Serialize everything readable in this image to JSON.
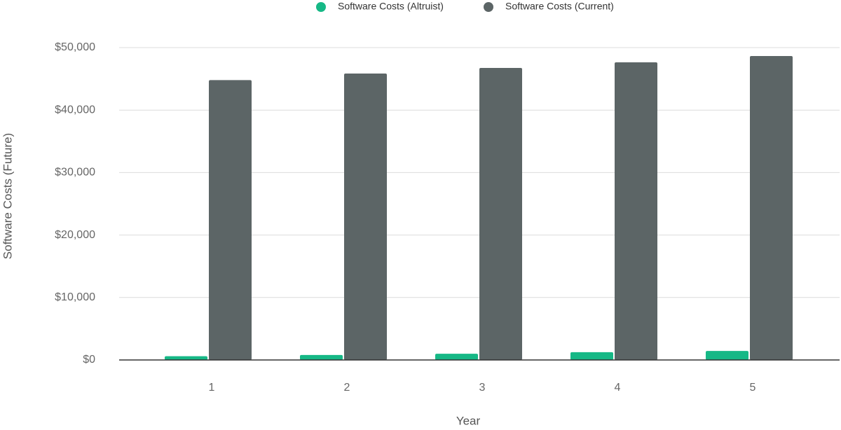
{
  "chart_data": {
    "type": "bar",
    "x_label": "Year",
    "y_label": "Software Costs (Future)",
    "categories": [
      "1",
      "2",
      "3",
      "4",
      "5"
    ],
    "series": [
      {
        "name": "Software Costs (Altruist)",
        "color": "#16b886",
        "values": [
          600,
          800,
          1000,
          1250,
          1450
        ]
      },
      {
        "name": "Software Costs (Current)",
        "color": "#5c6566",
        "values": [
          44800,
          45850,
          46750,
          47650,
          48650
        ]
      }
    ],
    "ylim": [
      0,
      50000
    ],
    "yticks": [
      {
        "value": 0,
        "label": "$0"
      },
      {
        "value": 10000,
        "label": "$10,000"
      },
      {
        "value": 20000,
        "label": "$20,000"
      },
      {
        "value": 30000,
        "label": "$30,000"
      },
      {
        "value": 40000,
        "label": "$40,000"
      },
      {
        "value": 50000,
        "label": "$50,000"
      }
    ],
    "grid": true,
    "legend": "top"
  }
}
